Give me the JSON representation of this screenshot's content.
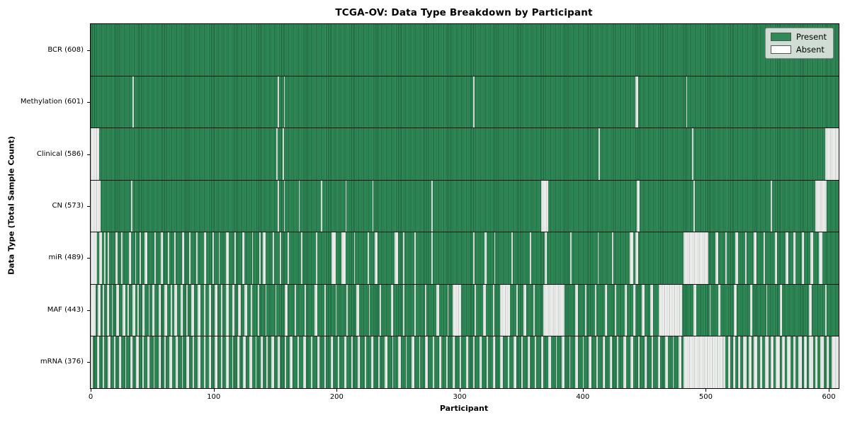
{
  "chart_data": {
    "type": "heatmap",
    "title": "TCGA-OV: Data Type Breakdown by Participant",
    "xlabel": "Participant",
    "ylabel": "Data Type (Total Sample Count)",
    "xlim": [
      0,
      608
    ],
    "n_participants": 608,
    "x_ticks": [
      0,
      100,
      200,
      300,
      400,
      500,
      600
    ],
    "grid": "row separators only",
    "colors": {
      "present": "#2e8b57",
      "present_edge": "#1e5c3c",
      "absent": "#ffffff",
      "absent_edge": "#aeb2ae",
      "legend_bg": "#e1e7e2",
      "axis": "#000000"
    },
    "legend": {
      "position": "upper right",
      "entries": [
        {
          "label": "Present",
          "color": "#2e8b57"
        },
        {
          "label": "Absent",
          "color": "#ffffff"
        }
      ]
    },
    "rows": [
      {
        "data_type": "BCR",
        "label": "BCR (608)",
        "present_count": 608,
        "absent_count": 0,
        "absent_ranges": []
      },
      {
        "data_type": "Methylation",
        "label": "Methylation (601)",
        "present_count": 601,
        "absent_count": 7,
        "absent_ranges": [
          [
            34,
            34
          ],
          [
            152,
            152
          ],
          [
            157,
            157
          ],
          [
            311,
            311
          ],
          [
            443,
            444
          ],
          [
            484,
            484
          ]
        ]
      },
      {
        "data_type": "Clinical",
        "label": "Clinical (586)",
        "present_count": 586,
        "absent_count": 22,
        "absent_ranges": [
          [
            0,
            6
          ],
          [
            151,
            151
          ],
          [
            156,
            156
          ],
          [
            413,
            413
          ],
          [
            489,
            489
          ],
          [
            597,
            607
          ]
        ]
      },
      {
        "data_type": "CN",
        "label": "CN (573)",
        "present_count": 573,
        "absent_count": 35,
        "absent_ranges": [
          [
            0,
            7
          ],
          [
            33,
            33
          ],
          [
            152,
            152
          ],
          [
            157,
            157
          ],
          [
            169,
            169
          ],
          [
            187,
            187
          ],
          [
            207,
            207
          ],
          [
            229,
            229
          ],
          [
            277,
            277
          ],
          [
            366,
            371
          ],
          [
            444,
            445
          ],
          [
            490,
            490
          ],
          [
            553,
            553
          ],
          [
            589,
            597
          ]
        ]
      },
      {
        "data_type": "miR",
        "label": "miR (489)",
        "present_count": 489,
        "absent_count": 119,
        "absent_ranges": [
          [
            0,
            4
          ],
          [
            7,
            8
          ],
          [
            11,
            11
          ],
          [
            14,
            14
          ],
          [
            20,
            21
          ],
          [
            25,
            25
          ],
          [
            31,
            32
          ],
          [
            36,
            36
          ],
          [
            40,
            40
          ],
          [
            44,
            45
          ],
          [
            52,
            52
          ],
          [
            57,
            58
          ],
          [
            63,
            63
          ],
          [
            68,
            68
          ],
          [
            74,
            75
          ],
          [
            80,
            80
          ],
          [
            86,
            86
          ],
          [
            92,
            93
          ],
          [
            99,
            99
          ],
          [
            104,
            104
          ],
          [
            110,
            111
          ],
          [
            117,
            117
          ],
          [
            123,
            124
          ],
          [
            131,
            131
          ],
          [
            137,
            137
          ],
          [
            140,
            141
          ],
          [
            148,
            148
          ],
          [
            154,
            154
          ],
          [
            160,
            160
          ],
          [
            171,
            171
          ],
          [
            183,
            183
          ],
          [
            196,
            198
          ],
          [
            204,
            206
          ],
          [
            214,
            214
          ],
          [
            225,
            225
          ],
          [
            231,
            232
          ],
          [
            247,
            249
          ],
          [
            254,
            254
          ],
          [
            263,
            263
          ],
          [
            277,
            277
          ],
          [
            311,
            311
          ],
          [
            320,
            321
          ],
          [
            328,
            328
          ],
          [
            342,
            342
          ],
          [
            357,
            357
          ],
          [
            369,
            370
          ],
          [
            390,
            390
          ],
          [
            412,
            412
          ],
          [
            424,
            424
          ],
          [
            438,
            440
          ],
          [
            443,
            444
          ],
          [
            482,
            501
          ],
          [
            508,
            509
          ],
          [
            516,
            516
          ],
          [
            524,
            525
          ],
          [
            532,
            532
          ],
          [
            539,
            540
          ],
          [
            547,
            547
          ],
          [
            556,
            557
          ],
          [
            565,
            566
          ],
          [
            571,
            572
          ],
          [
            578,
            579
          ],
          [
            585,
            586
          ],
          [
            592,
            594
          ]
        ]
      },
      {
        "data_type": "MAF",
        "label": "MAF (443)",
        "present_count": 443,
        "absent_count": 165,
        "absent_ranges": [
          [
            0,
            3
          ],
          [
            6,
            7
          ],
          [
            10,
            10
          ],
          [
            13,
            14
          ],
          [
            17,
            17
          ],
          [
            21,
            22
          ],
          [
            26,
            27
          ],
          [
            30,
            30
          ],
          [
            34,
            35
          ],
          [
            38,
            38
          ],
          [
            42,
            43
          ],
          [
            47,
            47
          ],
          [
            50,
            51
          ],
          [
            55,
            56
          ],
          [
            60,
            61
          ],
          [
            65,
            65
          ],
          [
            68,
            69
          ],
          [
            73,
            74
          ],
          [
            78,
            78
          ],
          [
            82,
            83
          ],
          [
            87,
            88
          ],
          [
            92,
            92
          ],
          [
            96,
            97
          ],
          [
            101,
            102
          ],
          [
            106,
            106
          ],
          [
            110,
            111
          ],
          [
            115,
            116
          ],
          [
            120,
            121
          ],
          [
            125,
            126
          ],
          [
            130,
            130
          ],
          [
            136,
            136
          ],
          [
            142,
            142
          ],
          [
            150,
            150
          ],
          [
            158,
            159
          ],
          [
            166,
            166
          ],
          [
            174,
            174
          ],
          [
            182,
            183
          ],
          [
            190,
            190
          ],
          [
            199,
            199
          ],
          [
            208,
            208
          ],
          [
            216,
            217
          ],
          [
            226,
            226
          ],
          [
            235,
            235
          ],
          [
            244,
            245
          ],
          [
            254,
            254
          ],
          [
            263,
            263
          ],
          [
            272,
            272
          ],
          [
            281,
            282
          ],
          [
            290,
            290
          ],
          [
            294,
            300
          ],
          [
            312,
            312
          ],
          [
            319,
            320
          ],
          [
            327,
            327
          ],
          [
            333,
            340
          ],
          [
            346,
            346
          ],
          [
            352,
            353
          ],
          [
            360,
            360
          ],
          [
            368,
            384
          ],
          [
            394,
            395
          ],
          [
            402,
            402
          ],
          [
            410,
            410
          ],
          [
            418,
            419
          ],
          [
            426,
            426
          ],
          [
            434,
            435
          ],
          [
            441,
            442
          ],
          [
            448,
            449
          ],
          [
            455,
            456
          ],
          [
            462,
            480
          ],
          [
            490,
            491
          ],
          [
            503,
            503
          ],
          [
            510,
            511
          ],
          [
            523,
            524
          ],
          [
            536,
            537
          ],
          [
            549,
            549
          ],
          [
            560,
            561
          ],
          [
            584,
            585
          ],
          [
            597,
            597
          ]
        ]
      },
      {
        "data_type": "mRNA",
        "label": "mRNA (376)",
        "present_count": 376,
        "absent_count": 232,
        "absent_ranges": [
          [
            0,
            1
          ],
          [
            5,
            6
          ],
          [
            10,
            10
          ],
          [
            14,
            15
          ],
          [
            19,
            19
          ],
          [
            23,
            24
          ],
          [
            28,
            28
          ],
          [
            32,
            33
          ],
          [
            37,
            38
          ],
          [
            42,
            42
          ],
          [
            46,
            47
          ],
          [
            51,
            51
          ],
          [
            55,
            56
          ],
          [
            60,
            60
          ],
          [
            64,
            65
          ],
          [
            69,
            70
          ],
          [
            74,
            74
          ],
          [
            78,
            79
          ],
          [
            83,
            83
          ],
          [
            87,
            88
          ],
          [
            92,
            92
          ],
          [
            96,
            97
          ],
          [
            101,
            102
          ],
          [
            106,
            106
          ],
          [
            110,
            111
          ],
          [
            115,
            115
          ],
          [
            119,
            120
          ],
          [
            124,
            125
          ],
          [
            129,
            130
          ],
          [
            134,
            134
          ],
          [
            138,
            139
          ],
          [
            143,
            143
          ],
          [
            147,
            148
          ],
          [
            152,
            153
          ],
          [
            158,
            158
          ],
          [
            162,
            163
          ],
          [
            168,
            168
          ],
          [
            173,
            174
          ],
          [
            179,
            179
          ],
          [
            184,
            185
          ],
          [
            190,
            190
          ],
          [
            195,
            196
          ],
          [
            201,
            201
          ],
          [
            206,
            207
          ],
          [
            212,
            212
          ],
          [
            217,
            218
          ],
          [
            223,
            223
          ],
          [
            228,
            229
          ],
          [
            234,
            234
          ],
          [
            239,
            240
          ],
          [
            245,
            245
          ],
          [
            250,
            251
          ],
          [
            256,
            256
          ],
          [
            261,
            262
          ],
          [
            267,
            267
          ],
          [
            272,
            273
          ],
          [
            278,
            278
          ],
          [
            283,
            284
          ],
          [
            289,
            289
          ],
          [
            294,
            295
          ],
          [
            300,
            300
          ],
          [
            305,
            306
          ],
          [
            311,
            311
          ],
          [
            316,
            317
          ],
          [
            322,
            322
          ],
          [
            327,
            328
          ],
          [
            333,
            334
          ],
          [
            339,
            339
          ],
          [
            344,
            345
          ],
          [
            350,
            350
          ],
          [
            355,
            356
          ],
          [
            361,
            361
          ],
          [
            366,
            367
          ],
          [
            372,
            373
          ],
          [
            378,
            378
          ],
          [
            383,
            384
          ],
          [
            389,
            389
          ],
          [
            394,
            395
          ],
          [
            400,
            400
          ],
          [
            405,
            406
          ],
          [
            411,
            411
          ],
          [
            416,
            417
          ],
          [
            422,
            423
          ],
          [
            428,
            428
          ],
          [
            433,
            434
          ],
          [
            439,
            440
          ],
          [
            445,
            445
          ],
          [
            450,
            451
          ],
          [
            456,
            456
          ],
          [
            461,
            462
          ],
          [
            467,
            468
          ],
          [
            473,
            473
          ],
          [
            478,
            479
          ],
          [
            482,
            513
          ],
          [
            514,
            515
          ],
          [
            518,
            519
          ],
          [
            522,
            523
          ],
          [
            526,
            527
          ],
          [
            530,
            532
          ],
          [
            535,
            536
          ],
          [
            539,
            541
          ],
          [
            544,
            545
          ],
          [
            548,
            550
          ],
          [
            553,
            554
          ],
          [
            557,
            559
          ],
          [
            562,
            563
          ],
          [
            566,
            568
          ],
          [
            571,
            572
          ],
          [
            575,
            577
          ],
          [
            580,
            581
          ],
          [
            584,
            586
          ],
          [
            589,
            590
          ],
          [
            593,
            595
          ],
          [
            598,
            599
          ],
          [
            602,
            604
          ],
          [
            605,
            607
          ]
        ]
      }
    ]
  }
}
